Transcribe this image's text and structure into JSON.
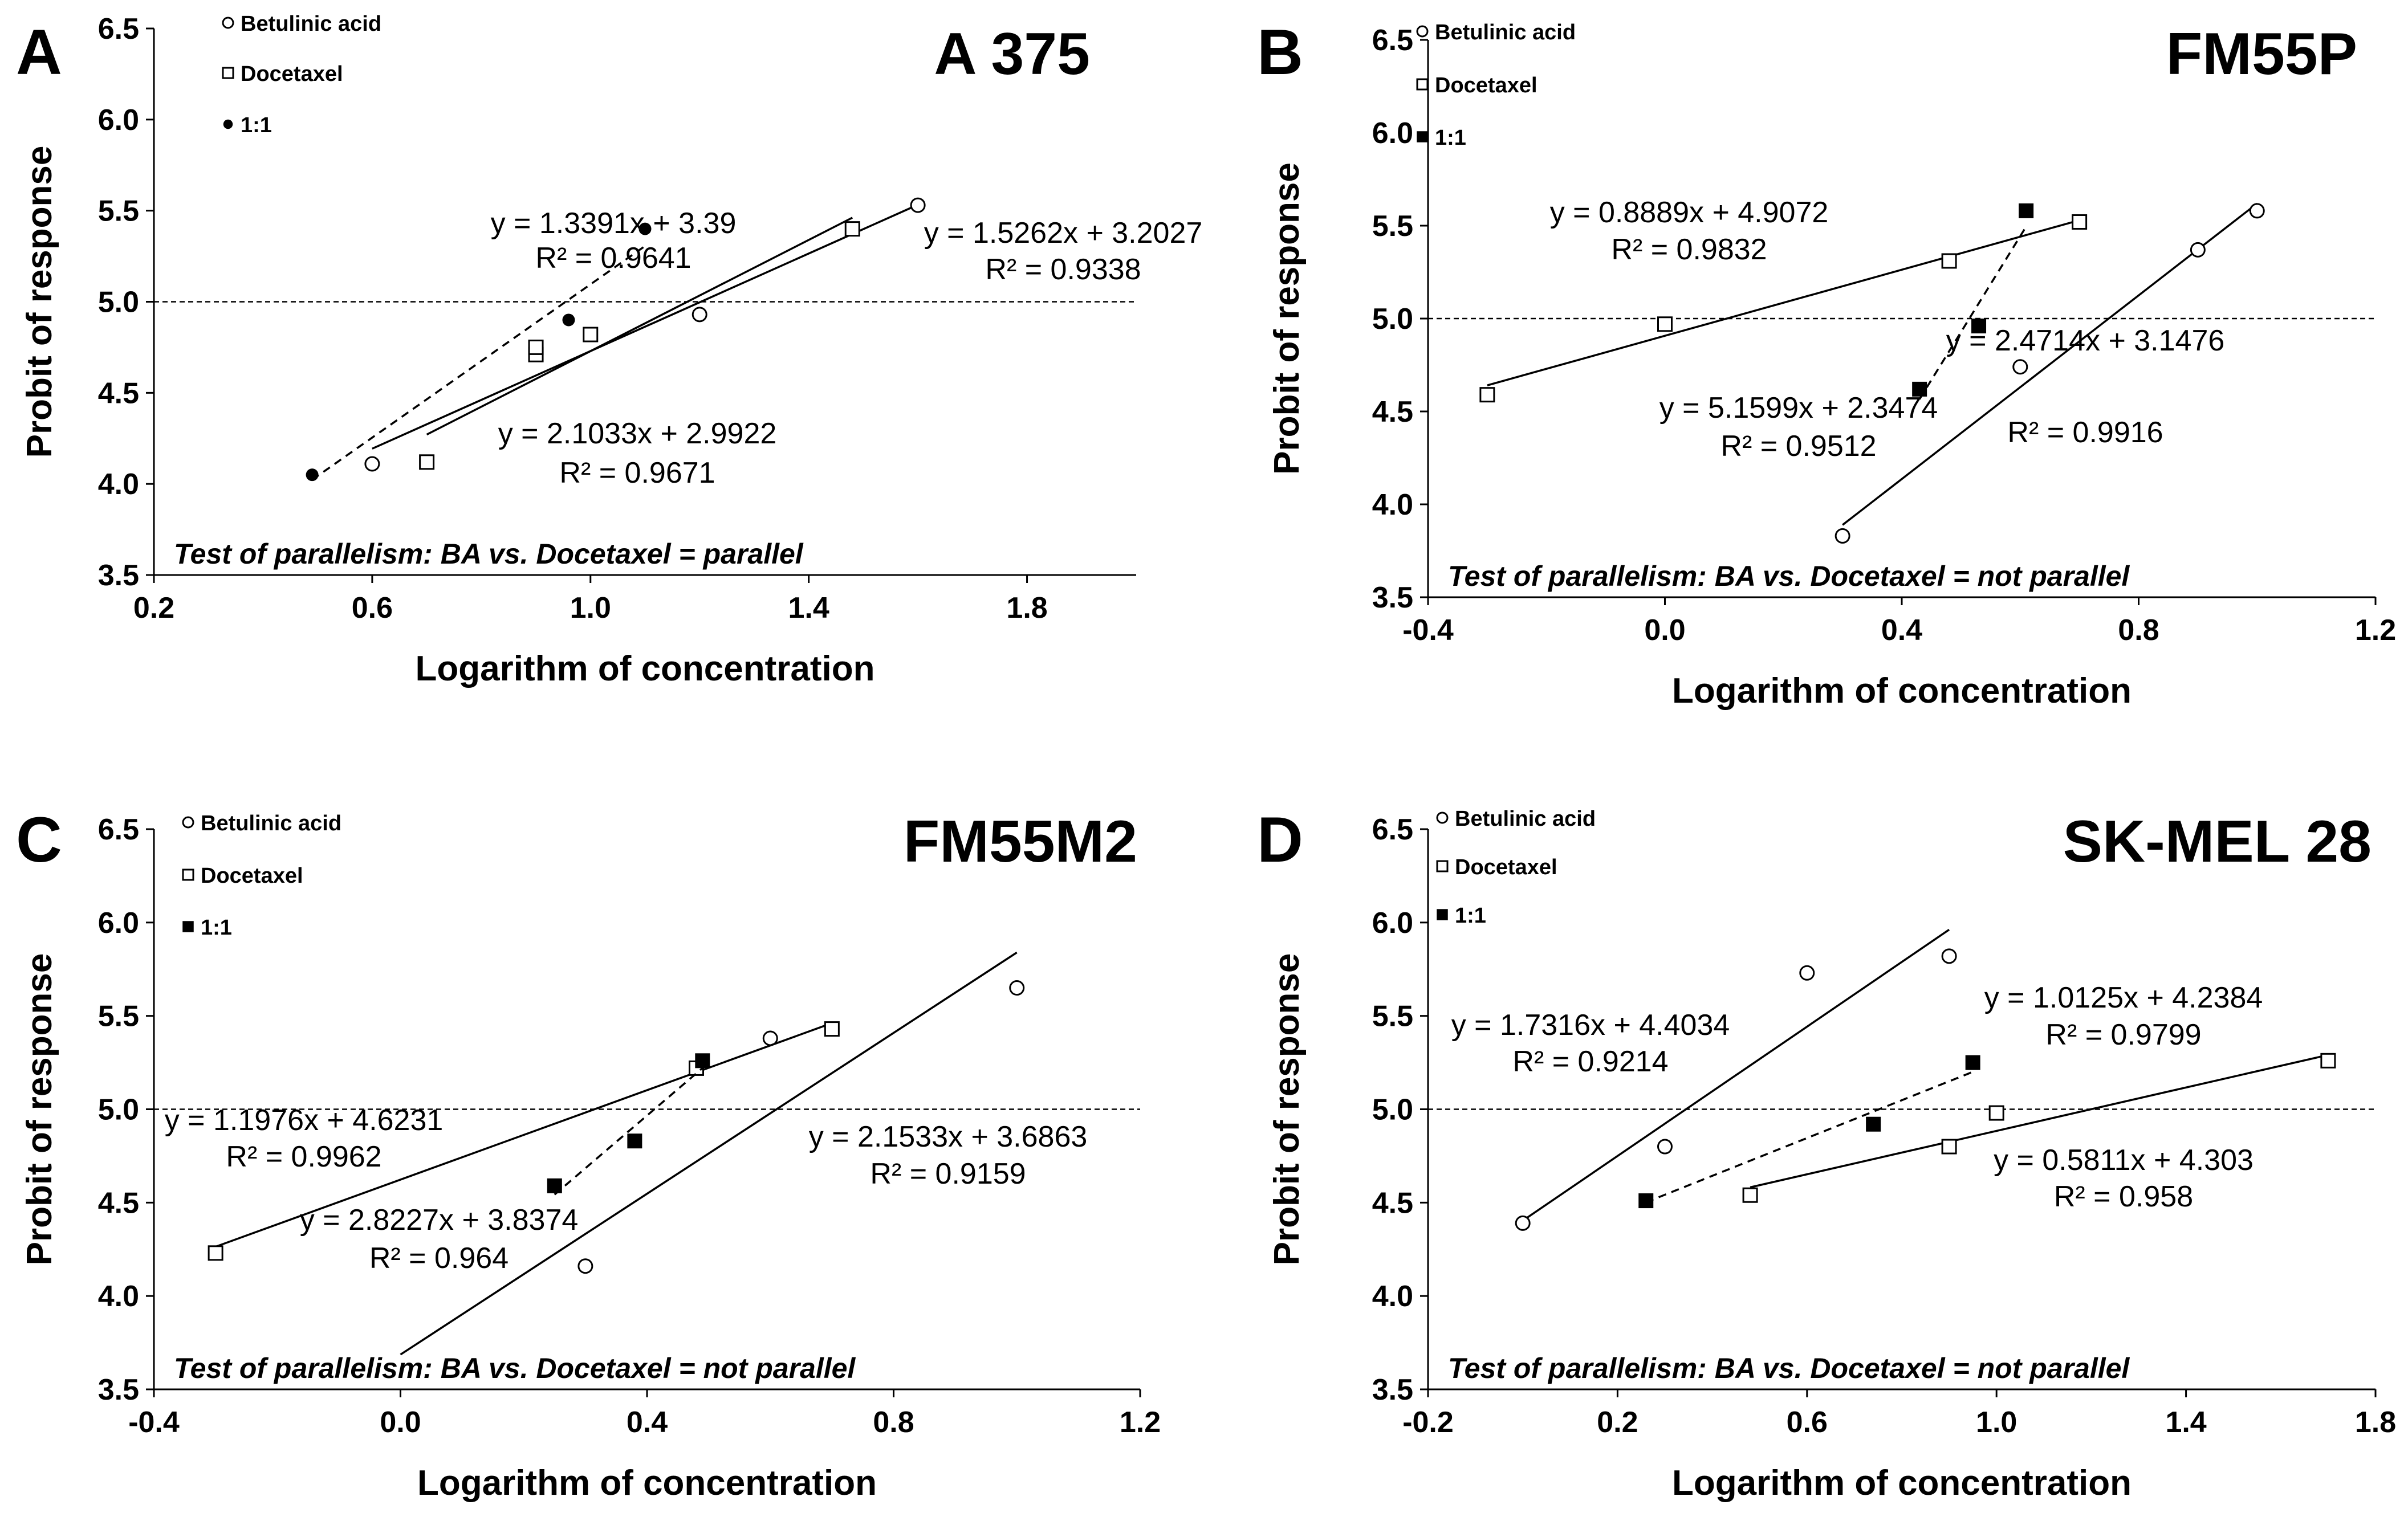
{
  "figure": {
    "x_axis_label": "Logarithm of concentration",
    "y_axis_label": "Probit of response",
    "colors": {
      "ink": "#000000",
      "background": "#ffffff"
    }
  },
  "chart_data": [
    {
      "type": "scatter",
      "panel_letter": "A",
      "title": "A 375",
      "xlabel": "Logarithm of concentration",
      "ylabel": "Probit of response",
      "xlim": [
        0.2,
        2.0
      ],
      "ylim": [
        3.5,
        6.5
      ],
      "x_ticks": [
        0.2,
        0.6,
        1.0,
        1.4,
        1.8
      ],
      "x_tick_labels": [
        "0.2",
        "0.6",
        "1.0",
        "1.4",
        "1.8"
      ],
      "y_ticks": [
        3.5,
        4.0,
        4.5,
        5.0,
        5.5,
        6.0,
        6.5
      ],
      "y_tick_labels": [
        "3.5",
        "4.0",
        "4.5",
        "5.0",
        "5.5",
        "6.0",
        "6.5"
      ],
      "reference_line_y": 5.0,
      "legend": [
        {
          "label": "Betulinic acid",
          "marker": "open-circle"
        },
        {
          "label": "Docetaxel",
          "marker": "open-square"
        },
        {
          "label": "1:1",
          "marker": "filled-circle"
        }
      ],
      "series": [
        {
          "name": "Betulinic acid",
          "marker": "open-circle",
          "points": [
            [
              0.6,
              4.11
            ],
            [
              1.2,
              4.93
            ],
            [
              1.6,
              5.53
            ]
          ],
          "fit": {
            "line_style": "solid",
            "x_range": [
              0.6,
              1.6
            ],
            "equation": "y = 1.3391x + 3.39",
            "r2": "R² = 0.9641"
          }
        },
        {
          "name": "Docetaxel",
          "marker": "open-square",
          "points": [
            [
              0.7,
              4.12
            ],
            [
              0.9,
              4.71
            ],
            [
              0.9,
              4.75
            ],
            [
              1.0,
              4.82
            ],
            [
              1.48,
              5.4
            ]
          ],
          "fit": {
            "line_style": "solid",
            "x_range": [
              0.7,
              1.48
            ],
            "equation": "y = 1.5262x + 3.2027",
            "r2": "R² = 0.9338"
          }
        },
        {
          "name": "1:1",
          "marker": "filled-circle",
          "points": [
            [
              0.49,
              4.05
            ],
            [
              0.96,
              4.9
            ],
            [
              1.1,
              5.4
            ]
          ],
          "fit": {
            "line_style": "dashed",
            "x_range": [
              0.49,
              1.1
            ],
            "equation": "y = 2.1033x + 2.9922",
            "r2": "R² = 0.9671"
          }
        }
      ],
      "annotation": "Test of parallelism: BA vs. Docetaxel = parallel"
    },
    {
      "type": "scatter",
      "panel_letter": "B",
      "title": "FM55P",
      "xlabel": "Logarithm of concentration",
      "ylabel": "Probit of response",
      "xlim": [
        -0.4,
        1.2
      ],
      "ylim": [
        3.5,
        6.5
      ],
      "x_ticks": [
        -0.4,
        0.0,
        0.4,
        0.8,
        1.2
      ],
      "x_tick_labels": [
        "-0.4",
        "0.0",
        "0.4",
        "0.8",
        "1.2"
      ],
      "y_ticks": [
        3.5,
        4.0,
        4.5,
        5.0,
        5.5,
        6.0,
        6.5
      ],
      "y_tick_labels": [
        "3.5",
        "4.0",
        "4.5",
        "5.0",
        "5.5",
        "6.0",
        "6.5"
      ],
      "reference_line_y": 5.0,
      "legend": [
        {
          "label": "Betulinic acid",
          "marker": "open-circle"
        },
        {
          "label": "Docetaxel",
          "marker": "open-square"
        },
        {
          "label": "1:1",
          "marker": "filled-square"
        }
      ],
      "series": [
        {
          "name": "Betulinic acid",
          "marker": "open-circle",
          "points": [
            [
              0.3,
              3.83
            ],
            [
              0.6,
              4.74
            ],
            [
              0.9,
              5.37
            ],
            [
              1.0,
              5.58
            ]
          ],
          "fit": {
            "line_style": "solid",
            "x_range": [
              0.3,
              1.0
            ],
            "equation": "y = 2.4714x + 3.1476",
            "r2": "R² = 0.9916"
          }
        },
        {
          "name": "Docetaxel",
          "marker": "open-square",
          "points": [
            [
              -0.3,
              4.59
            ],
            [
              0.0,
              4.97
            ],
            [
              0.48,
              5.31
            ],
            [
              0.7,
              5.52
            ]
          ],
          "fit": {
            "line_style": "solid",
            "x_range": [
              -0.3,
              0.7
            ],
            "equation": "y = 0.8889x + 4.9072",
            "r2": "R² = 0.9832"
          }
        },
        {
          "name": "1:1",
          "marker": "filled-square",
          "points": [
            [
              0.43,
              4.62
            ],
            [
              0.53,
              4.96
            ],
            [
              0.61,
              5.58
            ]
          ],
          "fit": {
            "line_style": "dashed",
            "x_range": [
              0.43,
              0.61
            ],
            "equation": "y = 5.1599x + 2.3474",
            "r2": "R² = 0.9512"
          }
        }
      ],
      "annotation": "Test of parallelism: BA vs. Docetaxel = not parallel"
    },
    {
      "type": "scatter",
      "panel_letter": "C",
      "title": "FM55M2",
      "xlabel": "Logarithm of concentration",
      "ylabel": "Probit of response",
      "xlim": [
        -0.4,
        1.2
      ],
      "ylim": [
        3.5,
        6.5
      ],
      "x_ticks": [
        -0.4,
        0.0,
        0.4,
        0.8,
        1.2
      ],
      "x_tick_labels": [
        "-0.4",
        "0.0",
        "0.4",
        "0.8",
        "1.2"
      ],
      "y_ticks": [
        3.5,
        4.0,
        4.5,
        5.0,
        5.5,
        6.0,
        6.5
      ],
      "y_tick_labels": [
        "3.5",
        "4.0",
        "4.5",
        "5.0",
        "5.5",
        "6.0",
        "6.5"
      ],
      "reference_line_y": 5.0,
      "legend": [
        {
          "label": "Betulinic acid",
          "marker": "open-circle"
        },
        {
          "label": "Docetaxel",
          "marker": "open-square"
        },
        {
          "label": "1:1",
          "marker": "filled-square"
        }
      ],
      "series": [
        {
          "name": "Betulinic acid",
          "marker": "open-circle",
          "points": [
            [
              0.3,
              4.16
            ],
            [
              0.6,
              5.38
            ],
            [
              1.0,
              5.65
            ]
          ],
          "fit": {
            "line_style": "solid",
            "x_range": [
              0.0,
              1.0
            ],
            "equation": "y = 2.1533x + 3.6863",
            "r2": "R² = 0.9159"
          }
        },
        {
          "name": "Docetaxel",
          "marker": "open-square",
          "points": [
            [
              -0.3,
              4.23
            ],
            [
              0.48,
              5.22
            ],
            [
              0.7,
              5.43
            ]
          ],
          "fit": {
            "line_style": "solid",
            "x_range": [
              -0.3,
              0.7
            ],
            "equation": "y = 1.1976x + 4.6231",
            "r2": "R² = 0.9962"
          }
        },
        {
          "name": "1:1",
          "marker": "filled-square",
          "points": [
            [
              0.25,
              4.59
            ],
            [
              0.38,
              4.83
            ],
            [
              0.49,
              5.26
            ]
          ],
          "fit": {
            "line_style": "dashed",
            "x_range": [
              0.25,
              0.49
            ],
            "equation": "y = 2.8227x + 3.8374",
            "r2": "R² = 0.964"
          }
        }
      ],
      "annotation": "Test of parallelism: BA vs. Docetaxel = not parallel"
    },
    {
      "type": "scatter",
      "panel_letter": "D",
      "title": "SK-MEL 28",
      "xlabel": "Logarithm of concentration",
      "ylabel": "Probit of response",
      "xlim": [
        -0.2,
        1.8
      ],
      "ylim": [
        3.5,
        6.5
      ],
      "x_ticks": [
        -0.2,
        0.2,
        0.6,
        1.0,
        1.4,
        1.8
      ],
      "x_tick_labels": [
        "-0.2",
        "0.2",
        "0.6",
        "1.0",
        "1.4",
        "1.8"
      ],
      "y_ticks": [
        3.5,
        4.0,
        4.5,
        5.0,
        5.5,
        6.0,
        6.5
      ],
      "y_tick_labels": [
        "3.5",
        "4.0",
        "4.5",
        "5.0",
        "5.5",
        "6.0",
        "6.5"
      ],
      "reference_line_y": 5.0,
      "legend": [
        {
          "label": "Betulinic acid",
          "marker": "open-circle"
        },
        {
          "label": "Docetaxel",
          "marker": "open-square"
        },
        {
          "label": "1:1",
          "marker": "filled-square"
        }
      ],
      "series": [
        {
          "name": "Betulinic acid",
          "marker": "open-circle",
          "points": [
            [
              0.0,
              4.39
            ],
            [
              0.3,
              4.8
            ],
            [
              0.6,
              5.73
            ],
            [
              0.9,
              5.82
            ]
          ],
          "fit": {
            "line_style": "solid",
            "x_range": [
              0.0,
              0.9
            ],
            "equation": "y = 1.7316x + 4.4034",
            "r2": "R² = 0.9214"
          }
        },
        {
          "name": "Docetaxel",
          "marker": "open-square",
          "points": [
            [
              0.48,
              4.54
            ],
            [
              0.9,
              4.8
            ],
            [
              1.0,
              4.98
            ],
            [
              1.7,
              5.26
            ]
          ],
          "fit": {
            "line_style": "solid",
            "x_range": [
              0.48,
              1.7
            ],
            "equation": "y = 0.5811x + 4.303",
            "r2": "R² = 0.958"
          }
        },
        {
          "name": "1:1",
          "marker": "filled-square",
          "points": [
            [
              0.26,
              4.51
            ],
            [
              0.74,
              4.92
            ],
            [
              0.95,
              5.25
            ]
          ],
          "fit": {
            "line_style": "dashed",
            "x_range": [
              0.26,
              0.95
            ],
            "equation": "y = 1.0125x + 4.2384",
            "r2": "R² = 0.9799"
          }
        }
      ],
      "annotation": "Test of parallelism: BA vs. Docetaxel = not parallel"
    }
  ]
}
